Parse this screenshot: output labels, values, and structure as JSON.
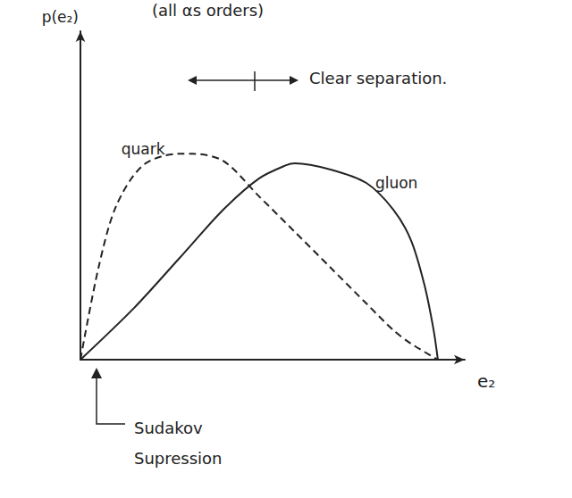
{
  "chart_data": {
    "type": "line",
    "title": "(all αs orders)",
    "x_label": "e₂",
    "y_label": "p(e₂)",
    "xlim": [
      0,
      10
    ],
    "ylim": [
      0,
      10
    ],
    "tick_labels": false,
    "grid": false,
    "series": [
      {
        "name": "quark",
        "color": "#222222",
        "line_style": "dashed",
        "x": [
          0,
          0.47,
          0.93,
          1.63,
          2.56,
          2.91,
          3.72,
          4.65,
          5.58,
          6.51,
          7.44,
          8.14,
          8.6,
          9.3
        ],
        "values": [
          0,
          2.8,
          4.68,
          5.92,
          6.27,
          6.27,
          6.05,
          4.97,
          3.89,
          2.8,
          1.71,
          0.9,
          0.49,
          0
        ]
      },
      {
        "name": "gluon",
        "color": "#222222",
        "line_style": "solid",
        "x": [
          0,
          1.4,
          2.56,
          3.72,
          4.65,
          5.35,
          5.58,
          6.51,
          7.44,
          8.14,
          8.6,
          8.95,
          9.19,
          9.3
        ],
        "values": [
          0,
          1.58,
          3.07,
          4.57,
          5.52,
          5.92,
          5.98,
          5.79,
          5.38,
          4.57,
          3.64,
          2.28,
          0.9,
          0
        ]
      }
    ],
    "annotations": [
      "Clear separation.",
      "Sudakov Supression"
    ]
  }
}
